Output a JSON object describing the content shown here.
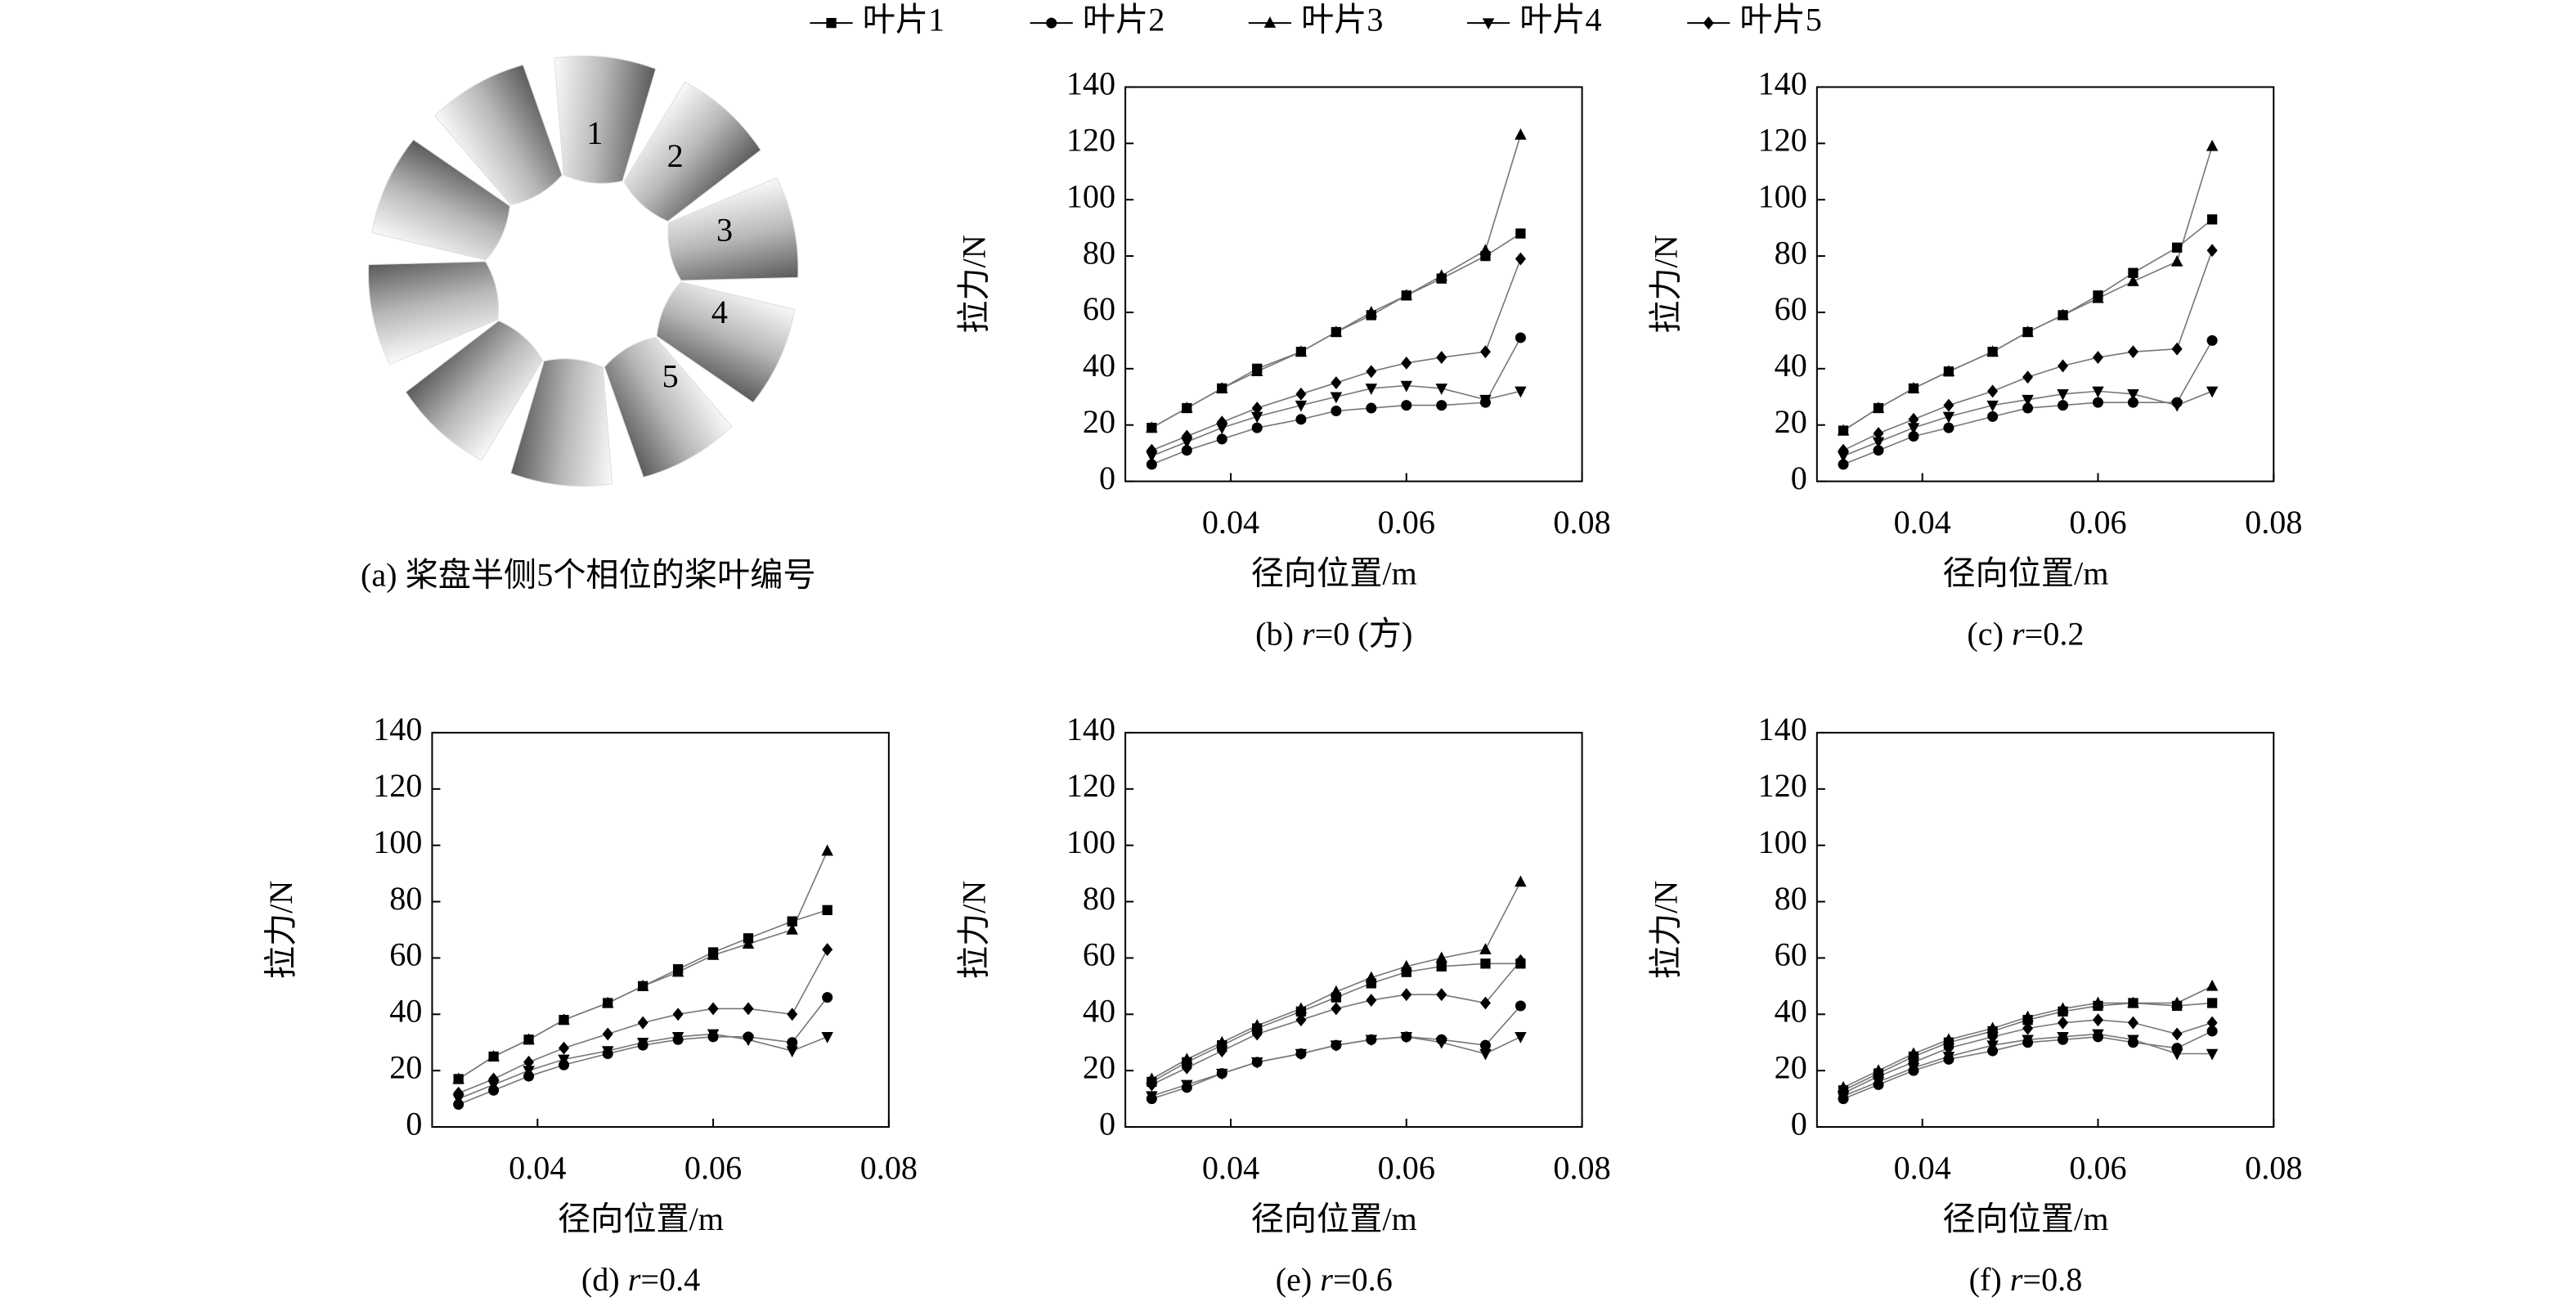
{
  "legend": [
    {
      "name": "叶片1",
      "marker": "square"
    },
    {
      "name": "叶片2",
      "marker": "circle"
    },
    {
      "name": "叶片3",
      "marker": "triangle-up"
    },
    {
      "name": "叶片4",
      "marker": "triangle-down"
    },
    {
      "name": "叶片5",
      "marker": "diamond"
    }
  ],
  "diagram": {
    "blade_labels": [
      "1",
      "2",
      "3",
      "4",
      "5"
    ],
    "caption": "(a) 桨盘半侧5个相位的桨叶编号"
  },
  "chart_data": [
    {
      "type": "line",
      "caption": [
        "(b) ",
        "r",
        "=0 (方)"
      ],
      "xlabel": "径向位置/m",
      "ylabel": "拉力/N",
      "x": [
        0.031,
        0.035,
        0.039,
        0.043,
        0.048,
        0.052,
        0.056,
        0.06,
        0.064,
        0.069,
        0.073
      ],
      "xlim": [
        0.028,
        0.08
      ],
      "xticks": [
        0.04,
        0.06,
        0.08
      ],
      "ylim": [
        0,
        140
      ],
      "yticks": [
        0,
        20,
        40,
        60,
        80,
        100,
        120,
        140
      ],
      "series": [
        {
          "marker": "square",
          "values": [
            19,
            26,
            33,
            40,
            46,
            53,
            59,
            66,
            72,
            80,
            88
          ]
        },
        {
          "marker": "circle",
          "values": [
            6,
            11,
            15,
            19,
            22,
            25,
            26,
            27,
            27,
            28,
            51
          ]
        },
        {
          "marker": "triangle-up",
          "values": [
            19,
            26,
            33,
            39,
            46,
            53,
            60,
            66,
            73,
            82,
            123
          ]
        },
        {
          "marker": "triangle-down",
          "values": [
            9,
            14,
            19,
            23,
            27,
            30,
            33,
            34,
            33,
            29,
            32
          ]
        },
        {
          "marker": "diamond",
          "values": [
            11,
            16,
            21,
            26,
            31,
            35,
            39,
            42,
            44,
            46,
            79
          ]
        }
      ]
    },
    {
      "type": "line",
      "caption": [
        "(c) ",
        "r",
        "=0.2"
      ],
      "xlabel": "径向位置/m",
      "ylabel": "拉力/N",
      "x": [
        0.031,
        0.035,
        0.039,
        0.043,
        0.048,
        0.052,
        0.056,
        0.06,
        0.064,
        0.069,
        0.073
      ],
      "xlim": [
        0.028,
        0.08
      ],
      "xticks": [
        0.04,
        0.06,
        0.08
      ],
      "ylim": [
        0,
        140
      ],
      "yticks": [
        0,
        20,
        40,
        60,
        80,
        100,
        120,
        140
      ],
      "series": [
        {
          "marker": "square",
          "values": [
            18,
            26,
            33,
            39,
            46,
            53,
            59,
            66,
            74,
            83,
            93
          ]
        },
        {
          "marker": "circle",
          "values": [
            6,
            11,
            16,
            19,
            23,
            26,
            27,
            28,
            28,
            28,
            50
          ]
        },
        {
          "marker": "triangle-up",
          "values": [
            18,
            26,
            33,
            39,
            46,
            53,
            59,
            65,
            71,
            78,
            119
          ]
        },
        {
          "marker": "triangle-down",
          "values": [
            9,
            14,
            19,
            23,
            27,
            29,
            31,
            32,
            31,
            27,
            32
          ]
        },
        {
          "marker": "diamond",
          "values": [
            11,
            17,
            22,
            27,
            32,
            37,
            41,
            44,
            46,
            47,
            82
          ]
        }
      ]
    },
    {
      "type": "line",
      "caption": [
        "(d) ",
        "r",
        "=0.4"
      ],
      "xlabel": "径向位置/m",
      "ylabel": "拉力/N",
      "x": [
        0.031,
        0.035,
        0.039,
        0.043,
        0.048,
        0.052,
        0.056,
        0.06,
        0.064,
        0.069,
        0.073
      ],
      "xlim": [
        0.028,
        0.08
      ],
      "xticks": [
        0.04,
        0.06,
        0.08
      ],
      "ylim": [
        0,
        140
      ],
      "yticks": [
        0,
        20,
        40,
        60,
        80,
        100,
        120,
        140
      ],
      "series": [
        {
          "marker": "square",
          "values": [
            17,
            25,
            31,
            38,
            44,
            50,
            56,
            62,
            67,
            73,
            77
          ]
        },
        {
          "marker": "circle",
          "values": [
            8,
            13,
            18,
            22,
            26,
            29,
            31,
            32,
            32,
            30,
            46
          ]
        },
        {
          "marker": "triangle-up",
          "values": [
            17,
            25,
            31,
            38,
            44,
            50,
            55,
            61,
            65,
            70,
            98
          ]
        },
        {
          "marker": "triangle-down",
          "values": [
            10,
            15,
            20,
            24,
            27,
            30,
            32,
            33,
            31,
            27,
            32
          ]
        },
        {
          "marker": "diamond",
          "values": [
            12,
            17,
            23,
            28,
            33,
            37,
            40,
            42,
            42,
            40,
            63
          ]
        }
      ]
    },
    {
      "type": "line",
      "caption": [
        "(e) ",
        "r",
        "=0.6"
      ],
      "xlabel": "径向位置/m",
      "ylabel": "拉力/N",
      "x": [
        0.031,
        0.035,
        0.039,
        0.043,
        0.048,
        0.052,
        0.056,
        0.06,
        0.064,
        0.069,
        0.073
      ],
      "xlim": [
        0.028,
        0.08
      ],
      "xticks": [
        0.04,
        0.06,
        0.08
      ],
      "ylim": [
        0,
        140
      ],
      "yticks": [
        0,
        20,
        40,
        60,
        80,
        100,
        120,
        140
      ],
      "series": [
        {
          "marker": "square",
          "values": [
            16,
            23,
            29,
            35,
            41,
            46,
            51,
            55,
            57,
            58,
            58
          ]
        },
        {
          "marker": "circle",
          "values": [
            10,
            14,
            19,
            23,
            26,
            29,
            31,
            32,
            31,
            29,
            43
          ]
        },
        {
          "marker": "triangle-up",
          "values": [
            17,
            24,
            30,
            36,
            42,
            48,
            53,
            57,
            60,
            63,
            87
          ]
        },
        {
          "marker": "triangle-down",
          "values": [
            11,
            15,
            19,
            23,
            26,
            29,
            31,
            32,
            30,
            26,
            32
          ]
        },
        {
          "marker": "diamond",
          "values": [
            15,
            21,
            27,
            33,
            38,
            42,
            45,
            47,
            47,
            44,
            59
          ]
        }
      ]
    },
    {
      "type": "line",
      "caption": [
        "(f) ",
        "r",
        "=0.8"
      ],
      "xlabel": "径向位置/m",
      "ylabel": "拉力/N",
      "x": [
        0.031,
        0.035,
        0.039,
        0.043,
        0.048,
        0.052,
        0.056,
        0.06,
        0.064,
        0.069,
        0.073
      ],
      "xlim": [
        0.028,
        0.08
      ],
      "xticks": [
        0.04,
        0.06,
        0.08
      ],
      "ylim": [
        0,
        140
      ],
      "yticks": [
        0,
        20,
        40,
        60,
        80,
        100,
        120,
        140
      ],
      "series": [
        {
          "marker": "square",
          "values": [
            13,
            19,
            25,
            30,
            34,
            38,
            41,
            43,
            44,
            43,
            44
          ]
        },
        {
          "marker": "circle",
          "values": [
            10,
            15,
            20,
            24,
            27,
            30,
            31,
            32,
            30,
            28,
            34
          ]
        },
        {
          "marker": "triangle-up",
          "values": [
            14,
            20,
            26,
            31,
            35,
            39,
            42,
            44,
            44,
            44,
            50
          ]
        },
        {
          "marker": "triangle-down",
          "values": [
            11,
            16,
            21,
            25,
            29,
            31,
            32,
            33,
            31,
            26,
            26
          ]
        },
        {
          "marker": "diamond",
          "values": [
            12,
            18,
            23,
            28,
            32,
            35,
            37,
            38,
            37,
            33,
            37
          ]
        }
      ]
    }
  ]
}
